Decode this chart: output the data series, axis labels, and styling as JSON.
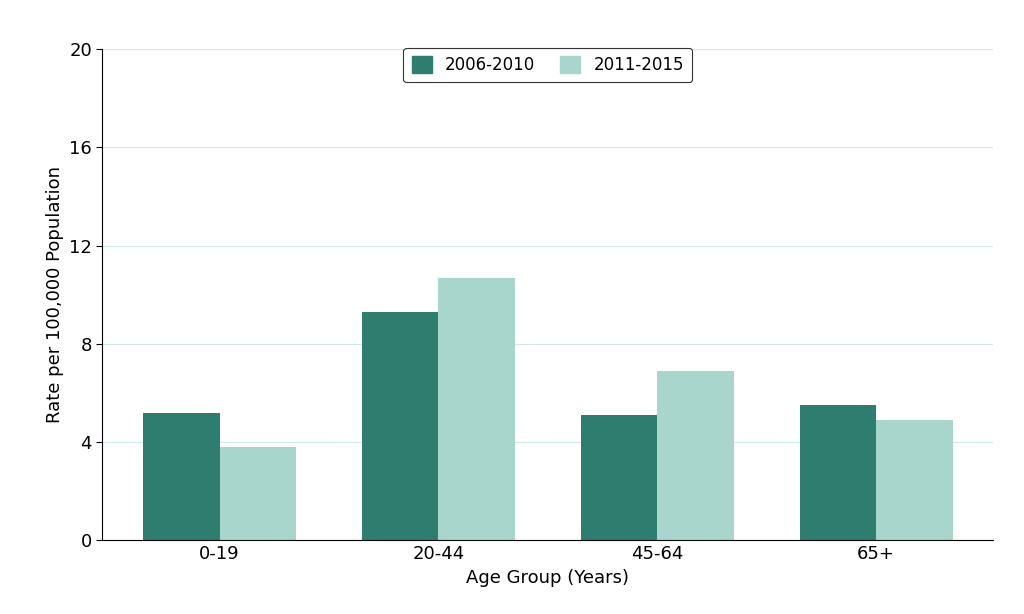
{
  "categories": [
    "0-19",
    "20-44",
    "45-64",
    "65+"
  ],
  "series": {
    "2006-2010": [
      5.2,
      9.3,
      5.1,
      5.5
    ],
    "2011-2015": [
      3.8,
      10.7,
      6.9,
      4.9
    ]
  },
  "colors": {
    "2006-2010": "#2E7D6E",
    "2011-2015": "#A8D5CC"
  },
  "ylabel": "Rate per 100,000 Population",
  "xlabel": "Age Group (Years)",
  "ylim": [
    0,
    20
  ],
  "yticks": [
    0,
    4,
    8,
    12,
    16,
    20
  ],
  "bar_width": 0.35,
  "background_color": "#ffffff",
  "legend_labels": [
    "2006-2010",
    "2011-2015"
  ]
}
